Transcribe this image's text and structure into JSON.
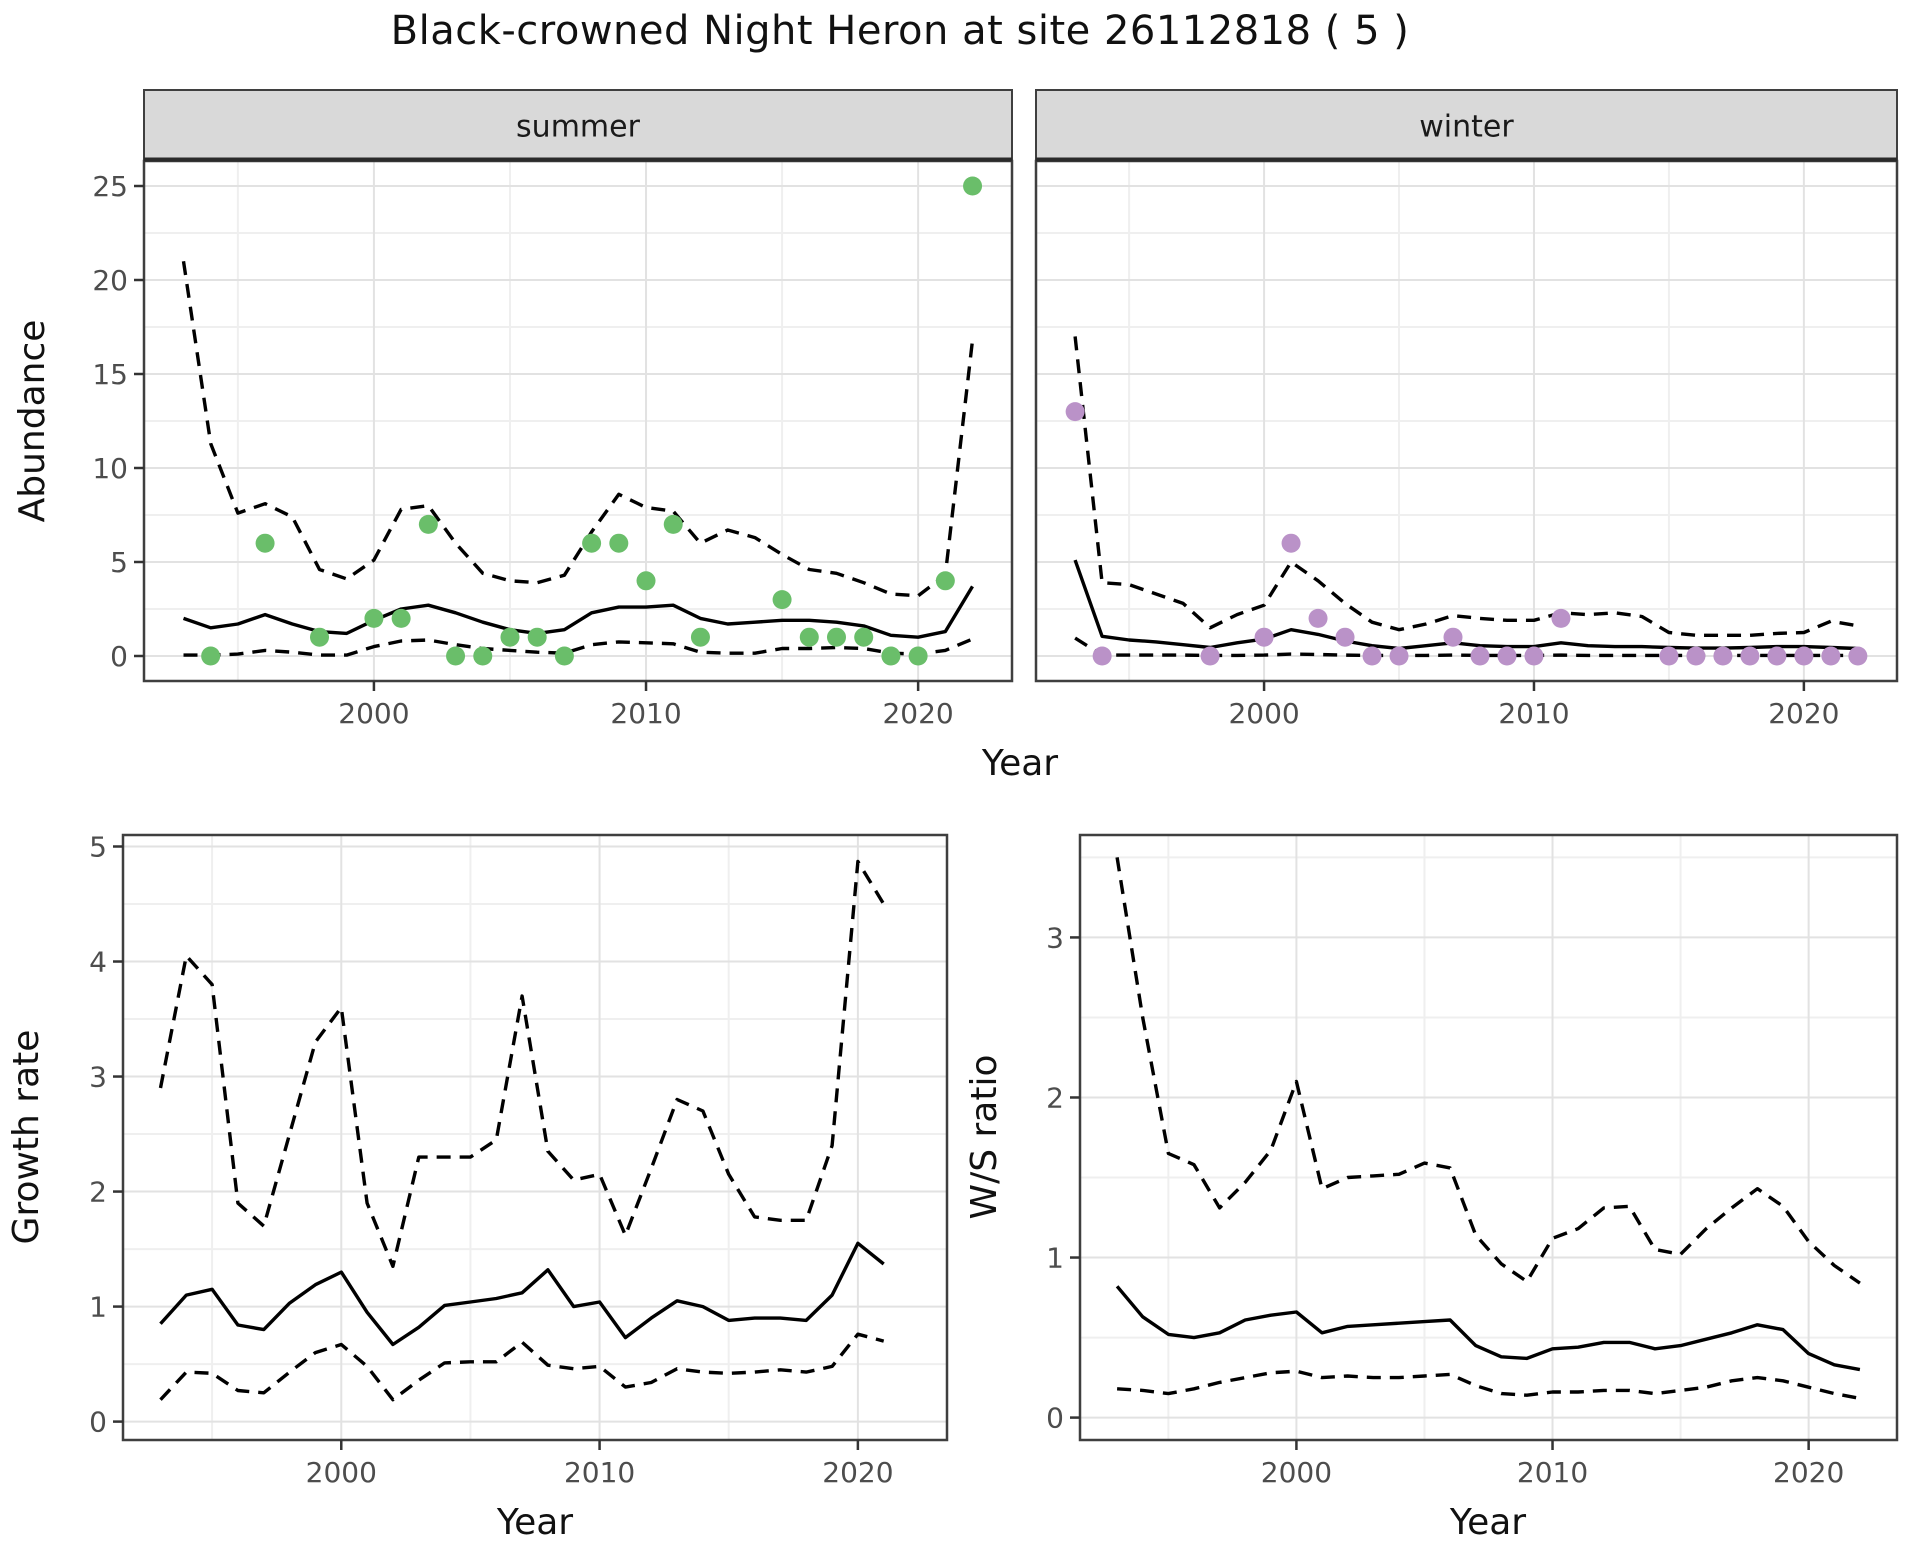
{
  "title": "Black-crowned Night Heron at site 26112818 ( 5 )",
  "axes": {
    "abundance_ylabel": "Abundance",
    "top_xlabel": "Year",
    "growth_ylabel": "Growth rate",
    "growth_xlabel": "Year",
    "ws_ylabel": "W/S ratio",
    "ws_xlabel": "Year"
  },
  "colors": {
    "summer_point": "#6ABE6A",
    "winter_point": "#BA92C8",
    "line": "#000000",
    "strip_bg": "#d9d9d9",
    "panel_border": "#3f3f3f",
    "grid_major": "#e2e2e2",
    "grid_minor": "#efefef",
    "tick_text": "#4d4d4d"
  },
  "chart_data": [
    {
      "name": "abundance-summer",
      "type": "line",
      "facet_label": "summer",
      "xlim": [
        1991.55,
        2023.45
      ],
      "ylim": [
        -1.33,
        26.33
      ],
      "x_ticks": [
        2000,
        2010,
        2020
      ],
      "x_minor": [
        1995,
        2005,
        2015
      ],
      "y_ticks": [
        0,
        5,
        10,
        15,
        20,
        25
      ],
      "y_minor": [
        2.5,
        7.5,
        12.5,
        17.5,
        22.5
      ],
      "series": [
        {
          "name": "upper-ci",
          "style": "dashed",
          "x": [
            1993,
            1994,
            1995,
            1996,
            1997,
            1998,
            1999,
            2000,
            2001,
            2002,
            2003,
            2004,
            2005,
            2006,
            2007,
            2008,
            2009,
            2010,
            2011,
            2012,
            2013,
            2014,
            2015,
            2016,
            2017,
            2018,
            2019,
            2020,
            2021,
            2022
          ],
          "y": [
            21.0,
            11.3,
            7.6,
            8.1,
            7.4,
            4.6,
            4.1,
            5.1,
            7.8,
            8.0,
            6.0,
            4.4,
            4.0,
            3.9,
            4.3,
            6.6,
            8.6,
            7.9,
            7.7,
            6.0,
            6.7,
            6.3,
            5.4,
            4.6,
            4.4,
            3.9,
            3.3,
            3.2,
            4.3,
            16.8
          ]
        },
        {
          "name": "lower-ci",
          "style": "dashed",
          "x": [
            1993,
            1994,
            1995,
            1996,
            1997,
            1998,
            1999,
            2000,
            2001,
            2002,
            2003,
            2004,
            2005,
            2006,
            2007,
            2008,
            2009,
            2010,
            2011,
            2012,
            2013,
            2014,
            2015,
            2016,
            2017,
            2018,
            2019,
            2020,
            2021,
            2022
          ],
          "y": [
            0.05,
            0.05,
            0.1,
            0.3,
            0.2,
            0.05,
            0.05,
            0.5,
            0.8,
            0.85,
            0.6,
            0.4,
            0.3,
            0.2,
            0.15,
            0.6,
            0.75,
            0.7,
            0.65,
            0.2,
            0.15,
            0.15,
            0.4,
            0.4,
            0.45,
            0.4,
            0.15,
            0.1,
            0.3,
            0.9
          ]
        },
        {
          "name": "mean",
          "style": "solid",
          "x": [
            1993,
            1994,
            1995,
            1996,
            1997,
            1998,
            1999,
            2000,
            2001,
            2002,
            2003,
            2004,
            2005,
            2006,
            2007,
            2008,
            2009,
            2010,
            2011,
            2012,
            2013,
            2014,
            2015,
            2016,
            2017,
            2018,
            2019,
            2020,
            2021,
            2022
          ],
          "y": [
            2.0,
            1.5,
            1.7,
            2.2,
            1.7,
            1.3,
            1.2,
            1.9,
            2.5,
            2.7,
            2.3,
            1.8,
            1.4,
            1.2,
            1.4,
            2.3,
            2.6,
            2.6,
            2.7,
            2.0,
            1.7,
            1.8,
            1.9,
            1.9,
            1.8,
            1.6,
            1.1,
            1.0,
            1.3,
            3.7
          ]
        },
        {
          "name": "observed",
          "style": "points",
          "color_key": "summer_point",
          "x": [
            1994,
            1996,
            1998,
            2000,
            2001,
            2002,
            2003,
            2004,
            2005,
            2006,
            2007,
            2008,
            2009,
            2010,
            2011,
            2012,
            2015,
            2016,
            2017,
            2018,
            2019,
            2020,
            2021,
            2022
          ],
          "y": [
            0,
            6,
            1,
            2,
            2,
            7,
            0,
            0,
            1,
            1,
            0,
            6,
            6,
            4,
            7,
            1,
            3,
            1,
            1,
            1,
            0,
            0,
            4,
            25
          ]
        }
      ]
    },
    {
      "name": "abundance-winter",
      "type": "line",
      "facet_label": "winter",
      "xlim": [
        1991.55,
        2023.45
      ],
      "ylim": [
        -1.33,
        26.33
      ],
      "x_ticks": [
        2000,
        2010,
        2020
      ],
      "x_minor": [
        1995,
        2005,
        2015
      ],
      "y_ticks": [
        0,
        5,
        10,
        15,
        20,
        25
      ],
      "y_minor": [
        2.5,
        7.5,
        12.5,
        17.5,
        22.5
      ],
      "series": [
        {
          "name": "upper-ci",
          "style": "dashed",
          "x": [
            1993,
            1994,
            1995,
            1996,
            1997,
            1998,
            1999,
            2000,
            2001,
            2002,
            2003,
            2004,
            2005,
            2006,
            2007,
            2008,
            2009,
            2010,
            2011,
            2012,
            2013,
            2014,
            2015,
            2016,
            2017,
            2018,
            2019,
            2020,
            2021,
            2022
          ],
          "y": [
            17.0,
            3.9,
            3.8,
            3.3,
            2.8,
            1.5,
            2.2,
            2.7,
            5.0,
            4.0,
            2.8,
            1.8,
            1.4,
            1.7,
            2.15,
            2.0,
            1.9,
            1.9,
            2.3,
            2.2,
            2.3,
            2.1,
            1.25,
            1.1,
            1.1,
            1.1,
            1.2,
            1.25,
            1.85,
            1.6
          ]
        },
        {
          "name": "lower-ci",
          "style": "dashed",
          "x": [
            1993,
            1994,
            1995,
            1996,
            1997,
            1998,
            1999,
            2000,
            2001,
            2002,
            2003,
            2004,
            2005,
            2006,
            2007,
            2008,
            2009,
            2010,
            2011,
            2012,
            2013,
            2014,
            2015,
            2016,
            2017,
            2018,
            2019,
            2020,
            2021,
            2022
          ],
          "y": [
            0.95,
            0.05,
            0.05,
            0.05,
            0.05,
            0.03,
            0.03,
            0.05,
            0.1,
            0.08,
            0.05,
            0.03,
            0.03,
            0.03,
            0.05,
            0.03,
            0.03,
            0.03,
            0.05,
            0.03,
            0.03,
            0.03,
            0.03,
            0.03,
            0.03,
            0.03,
            0.03,
            0.03,
            0.03,
            0.03
          ]
        },
        {
          "name": "mean",
          "style": "solid",
          "x": [
            1993,
            1994,
            1995,
            1996,
            1997,
            1998,
            1999,
            2000,
            2001,
            2002,
            2003,
            2004,
            2005,
            2006,
            2007,
            2008,
            2009,
            2010,
            2011,
            2012,
            2013,
            2014,
            2015,
            2016,
            2017,
            2018,
            2019,
            2020,
            2021,
            2022
          ],
          "y": [
            5.1,
            1.05,
            0.85,
            0.75,
            0.6,
            0.45,
            0.7,
            0.9,
            1.4,
            1.15,
            0.8,
            0.55,
            0.4,
            0.55,
            0.7,
            0.55,
            0.5,
            0.5,
            0.7,
            0.55,
            0.5,
            0.5,
            0.45,
            0.42,
            0.42,
            0.45,
            0.5,
            0.5,
            0.45,
            0.4
          ]
        },
        {
          "name": "observed",
          "style": "points",
          "color_key": "winter_point",
          "x": [
            1993,
            1994,
            1998,
            2000,
            2001,
            2002,
            2003,
            2004,
            2005,
            2007,
            2008,
            2009,
            2010,
            2011,
            2015,
            2016,
            2017,
            2018,
            2019,
            2020,
            2021,
            2022
          ],
          "y": [
            13,
            0,
            0,
            1,
            6,
            2,
            1,
            0,
            0,
            1,
            0,
            0,
            0,
            2,
            0,
            0,
            0,
            0,
            0,
            0,
            0,
            0
          ]
        }
      ]
    },
    {
      "name": "growth-rate",
      "type": "line",
      "facet_label": null,
      "xlim": [
        1991.55,
        2023.45
      ],
      "ylim": [
        -0.16,
        5.1
      ],
      "x_ticks": [
        2000,
        2010,
        2020
      ],
      "x_minor": [
        1995,
        2005,
        2015
      ],
      "y_ticks": [
        0,
        1,
        2,
        3,
        4,
        5
      ],
      "y_minor": [
        0.5,
        1.5,
        2.5,
        3.5,
        4.5
      ],
      "series": [
        {
          "name": "upper-ci",
          "style": "dashed",
          "x": [
            1993,
            1994,
            1995,
            1996,
            1997,
            1998,
            1999,
            2000,
            2001,
            2002,
            2003,
            2004,
            2005,
            2006,
            2007,
            2008,
            2009,
            2010,
            2011,
            2012,
            2013,
            2014,
            2015,
            2016,
            2017,
            2018,
            2019,
            2020,
            2021
          ],
          "y": [
            2.9,
            4.05,
            3.8,
            1.9,
            1.7,
            2.5,
            3.3,
            3.6,
            1.9,
            1.35,
            2.3,
            2.3,
            2.3,
            2.45,
            3.7,
            2.35,
            2.1,
            2.15,
            1.62,
            2.2,
            2.8,
            2.7,
            2.15,
            1.78,
            1.75,
            1.75,
            2.4,
            4.87,
            4.5
          ]
        },
        {
          "name": "lower-ci",
          "style": "dashed",
          "x": [
            1993,
            1994,
            1995,
            1996,
            1997,
            1998,
            1999,
            2000,
            2001,
            2002,
            2003,
            2004,
            2005,
            2006,
            2007,
            2008,
            2009,
            2010,
            2011,
            2012,
            2013,
            2014,
            2015,
            2016,
            2017,
            2018,
            2019,
            2020,
            2021
          ],
          "y": [
            0.19,
            0.43,
            0.42,
            0.27,
            0.25,
            0.43,
            0.6,
            0.67,
            0.48,
            0.19,
            0.36,
            0.51,
            0.52,
            0.52,
            0.69,
            0.49,
            0.46,
            0.48,
            0.3,
            0.34,
            0.46,
            0.43,
            0.42,
            0.43,
            0.45,
            0.43,
            0.48,
            0.76,
            0.7
          ]
        },
        {
          "name": "mean",
          "style": "solid",
          "x": [
            1993,
            1994,
            1995,
            1996,
            1997,
            1998,
            1999,
            2000,
            2001,
            2002,
            2003,
            2004,
            2005,
            2006,
            2007,
            2008,
            2009,
            2010,
            2011,
            2012,
            2013,
            2014,
            2015,
            2016,
            2017,
            2018,
            2019,
            2020,
            2021
          ],
          "y": [
            0.85,
            1.1,
            1.15,
            0.84,
            0.8,
            1.03,
            1.19,
            1.3,
            0.95,
            0.67,
            0.82,
            1.01,
            1.04,
            1.07,
            1.12,
            1.32,
            1.0,
            1.04,
            0.73,
            0.9,
            1.05,
            1.0,
            0.88,
            0.9,
            0.9,
            0.88,
            1.1,
            1.55,
            1.37
          ]
        }
      ]
    },
    {
      "name": "ws-ratio",
      "type": "line",
      "facet_label": null,
      "xlim": [
        1991.55,
        2023.45
      ],
      "ylim": [
        -0.14,
        3.64
      ],
      "x_ticks": [
        2000,
        2010,
        2020
      ],
      "x_minor": [
        1995,
        2005,
        2015
      ],
      "y_ticks": [
        0,
        1,
        2,
        3
      ],
      "y_minor": [
        0.5,
        1.5,
        2.5,
        3.5
      ],
      "series": [
        {
          "name": "upper-ci",
          "style": "dashed",
          "x": [
            1993,
            1994,
            1995,
            1996,
            1997,
            1998,
            1999,
            2000,
            2001,
            2002,
            2003,
            2004,
            2005,
            2006,
            2007,
            2008,
            2009,
            2010,
            2011,
            2012,
            2013,
            2014,
            2015,
            2016,
            2017,
            2018,
            2019,
            2020,
            2021,
            2022
          ],
          "y": [
            3.5,
            2.5,
            1.65,
            1.58,
            1.31,
            1.47,
            1.67,
            2.1,
            1.43,
            1.5,
            1.51,
            1.52,
            1.59,
            1.56,
            1.14,
            0.96,
            0.85,
            1.12,
            1.18,
            1.31,
            1.32,
            1.05,
            1.02,
            1.18,
            1.31,
            1.43,
            1.32,
            1.1,
            0.95,
            0.84
          ]
        },
        {
          "name": "lower-ci",
          "style": "dashed",
          "x": [
            1993,
            1994,
            1995,
            1996,
            1997,
            1998,
            1999,
            2000,
            2001,
            2002,
            2003,
            2004,
            2005,
            2006,
            2007,
            2008,
            2009,
            2010,
            2011,
            2012,
            2013,
            2014,
            2015,
            2016,
            2017,
            2018,
            2019,
            2020,
            2021,
            2022
          ],
          "y": [
            0.18,
            0.17,
            0.15,
            0.18,
            0.22,
            0.25,
            0.28,
            0.29,
            0.25,
            0.26,
            0.25,
            0.25,
            0.26,
            0.27,
            0.2,
            0.15,
            0.14,
            0.16,
            0.16,
            0.17,
            0.17,
            0.15,
            0.17,
            0.19,
            0.23,
            0.25,
            0.23,
            0.19,
            0.15,
            0.12
          ]
        },
        {
          "name": "mean",
          "style": "solid",
          "x": [
            1993,
            1994,
            1995,
            1996,
            1997,
            1998,
            1999,
            2000,
            2001,
            2002,
            2003,
            2004,
            2005,
            2006,
            2007,
            2008,
            2009,
            2010,
            2011,
            2012,
            2013,
            2014,
            2015,
            2016,
            2017,
            2018,
            2019,
            2020,
            2021,
            2022
          ],
          "y": [
            0.82,
            0.63,
            0.52,
            0.5,
            0.53,
            0.61,
            0.64,
            0.66,
            0.53,
            0.57,
            0.58,
            0.59,
            0.6,
            0.61,
            0.45,
            0.38,
            0.37,
            0.43,
            0.44,
            0.47,
            0.47,
            0.43,
            0.45,
            0.49,
            0.53,
            0.58,
            0.55,
            0.4,
            0.33,
            0.3
          ]
        }
      ]
    }
  ]
}
